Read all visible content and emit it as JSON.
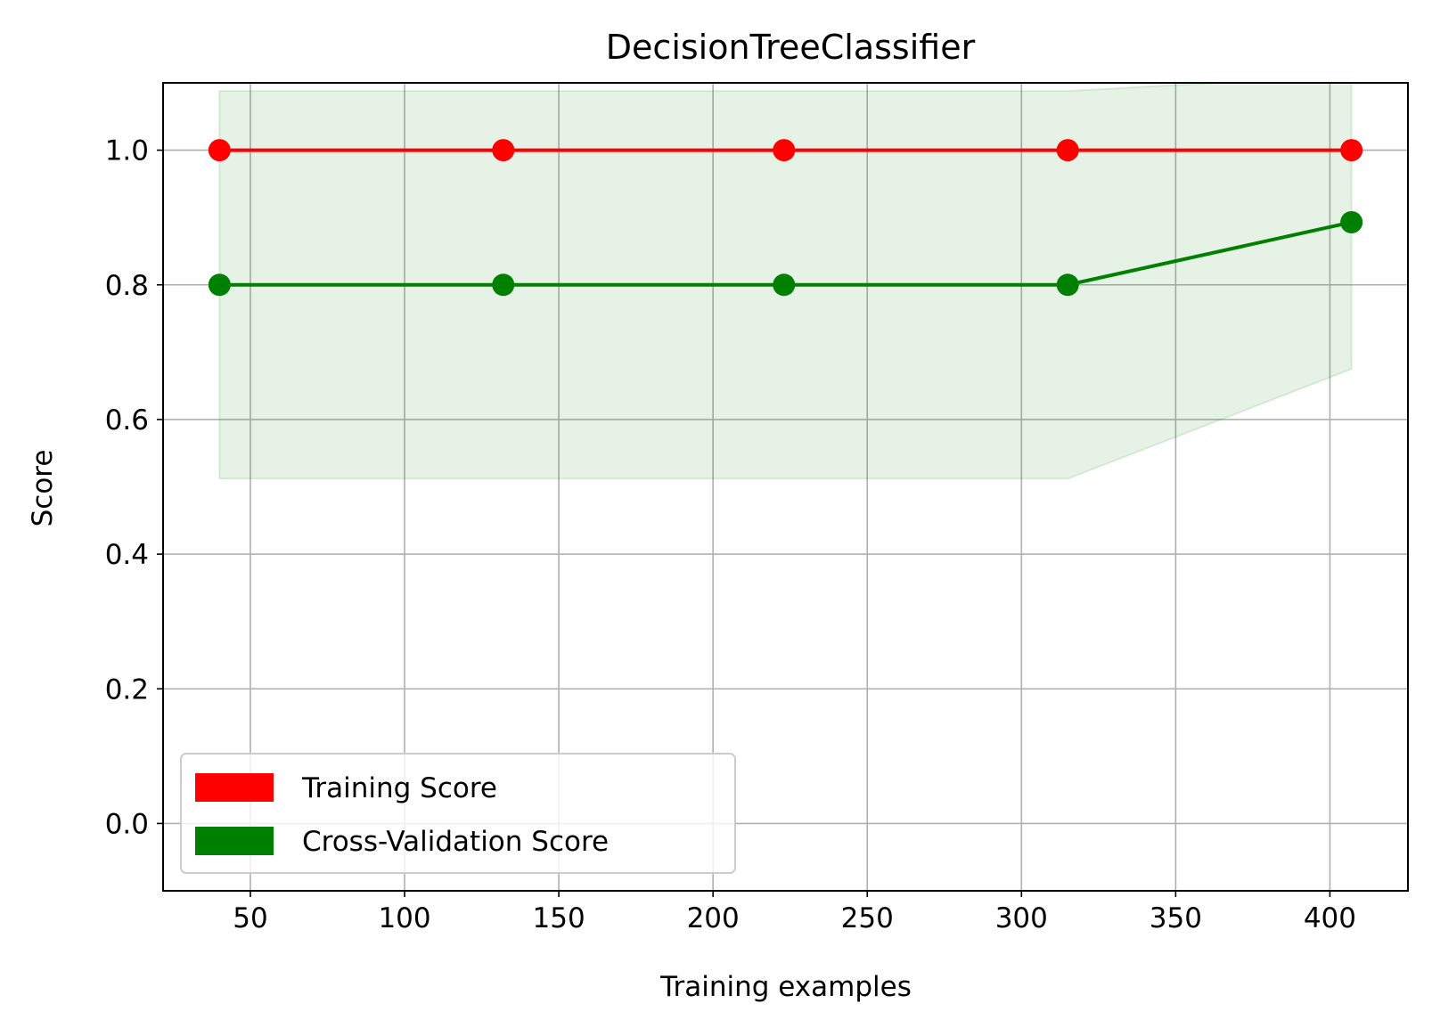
{
  "chart_data": {
    "type": "line",
    "title": "DecisionTreeClassifier",
    "xlabel": "Training examples",
    "ylabel": "Score",
    "xlim": [
      21.7,
      425.3
    ],
    "ylim": [
      -0.1,
      1.1
    ],
    "xticks": [
      50,
      100,
      150,
      200,
      250,
      300,
      350,
      400
    ],
    "yticks": [
      0.0,
      0.2,
      0.4,
      0.6,
      0.8,
      1.0
    ],
    "xtick_labels": [
      "50",
      "100",
      "150",
      "200",
      "250",
      "300",
      "350",
      "400"
    ],
    "ytick_labels": [
      "0.0",
      "0.2",
      "0.4",
      "0.6",
      "0.8",
      "1.0"
    ],
    "grid": true,
    "legend_position": "lower-left",
    "x": [
      40,
      132,
      223,
      315,
      407
    ],
    "series": [
      {
        "name": "Training Score",
        "color": "#ff0000",
        "values": [
          1.0,
          1.0,
          1.0,
          1.0,
          1.0
        ]
      },
      {
        "name": "Cross-Validation Score",
        "color": "#008000",
        "values": [
          0.8,
          0.8,
          0.8,
          0.8,
          0.893
        ],
        "band": {
          "color": "#008000",
          "opacity": 0.1,
          "lower": [
            0.512,
            0.512,
            0.512,
            0.512,
            0.675
          ],
          "upper": [
            1.088,
            1.088,
            1.088,
            1.088,
            1.111
          ]
        }
      }
    ]
  }
}
